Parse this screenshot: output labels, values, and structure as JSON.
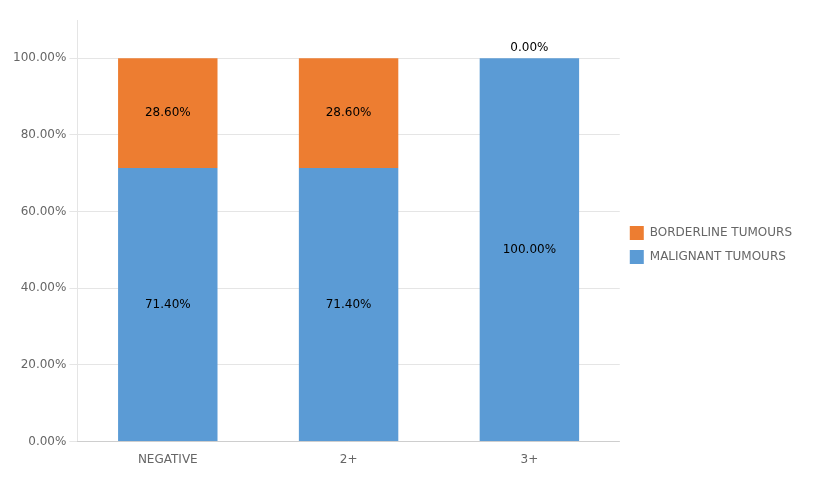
{
  "chart_data": {
    "type": "bar",
    "stacked": true,
    "categories": [
      "NEGATIVE",
      "2+",
      "3+"
    ],
    "series": [
      {
        "name": "MALIGNANT TUMOURS",
        "color": "#5b9bd5",
        "values": [
          71.4,
          71.4,
          100.0
        ],
        "value_labels": [
          "71.40%",
          "71.40%",
          "100.00%"
        ]
      },
      {
        "name": "BORDERLINE TUMOURS",
        "color": "#ed7d31",
        "values": [
          28.6,
          28.6,
          0.0
        ],
        "value_labels": [
          "28.60%",
          "28.60%",
          "0.00%"
        ]
      }
    ],
    "ylim": [
      0,
      110
    ],
    "yticks": [
      {
        "value": 0,
        "label": "0.00%"
      },
      {
        "value": 20,
        "label": "20.00%"
      },
      {
        "value": 40,
        "label": "40.00%"
      },
      {
        "value": 60,
        "label": "60.00%"
      },
      {
        "value": 80,
        "label": "80.00%"
      },
      {
        "value": 100,
        "label": "100.00%"
      }
    ],
    "grid": true,
    "legend": "right",
    "data_labels": true
  }
}
